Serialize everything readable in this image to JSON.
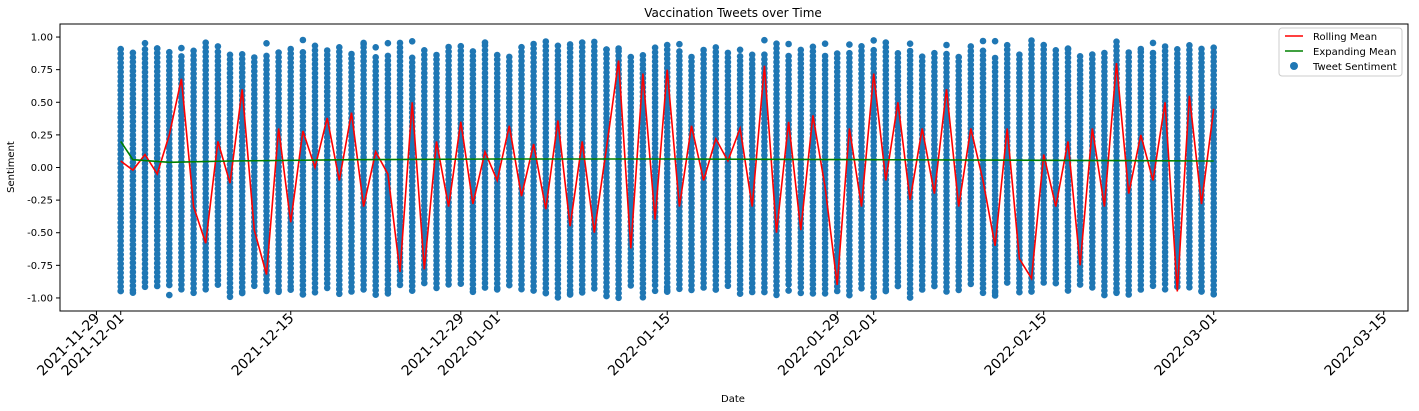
{
  "chart_data": {
    "type": "scatter",
    "title": "Vaccination Tweets over Time",
    "xlabel": "Date",
    "ylabel": "Sentiment",
    "x_range": [
      "2021-11-26",
      "2022-03-17"
    ],
    "ylim": [
      -1.1,
      1.1
    ],
    "y_ticks": [
      "1.00",
      "0.75",
      "0.50",
      "0.25",
      "0.00",
      "-0.25",
      "-0.50",
      "-0.75",
      "-1.00"
    ],
    "x_ticks": [
      "2021-11-29",
      "2021-12-01",
      "2021-12-15",
      "2021-12-29",
      "2022-01-01",
      "2022-01-15",
      "2022-01-29",
      "2022-02-01",
      "2022-02-15",
      "2022-03-01",
      "2022-03-15"
    ],
    "date_start": "2021-12-01",
    "date_end": "2022-03-01",
    "legend_position": "top-right",
    "grid": false,
    "series": [
      {
        "name": "Rolling Mean",
        "kind": "line",
        "color": "#ff0000",
        "points": [
          [
            "2021-12-01",
            0.05
          ],
          [
            "2021-12-02",
            -0.02
          ],
          [
            "2021-12-03",
            0.1
          ],
          [
            "2021-12-04",
            -0.05
          ],
          [
            "2021-12-05",
            0.25
          ],
          [
            "2021-12-06",
            0.68
          ],
          [
            "2021-12-07",
            -0.3
          ],
          [
            "2021-12-08",
            -0.58
          ],
          [
            "2021-12-09",
            0.2
          ],
          [
            "2021-12-10",
            -0.12
          ],
          [
            "2021-12-11",
            0.6
          ],
          [
            "2021-12-12",
            -0.48
          ],
          [
            "2021-12-13",
            -0.82
          ],
          [
            "2021-12-14",
            0.3
          ],
          [
            "2021-12-15",
            -0.42
          ],
          [
            "2021-12-16",
            0.28
          ],
          [
            "2021-12-17",
            0.0
          ],
          [
            "2021-12-18",
            0.38
          ],
          [
            "2021-12-19",
            -0.1
          ],
          [
            "2021-12-20",
            0.42
          ],
          [
            "2021-12-21",
            -0.3
          ],
          [
            "2021-12-22",
            0.12
          ],
          [
            "2021-12-23",
            -0.05
          ],
          [
            "2021-12-24",
            -0.8
          ],
          [
            "2021-12-25",
            0.5
          ],
          [
            "2021-12-26",
            -0.78
          ],
          [
            "2021-12-27",
            0.2
          ],
          [
            "2021-12-28",
            -0.3
          ],
          [
            "2021-12-29",
            0.35
          ],
          [
            "2021-12-30",
            -0.28
          ],
          [
            "2021-12-31",
            0.12
          ],
          [
            "2022-01-01",
            -0.1
          ],
          [
            "2022-01-02",
            0.32
          ],
          [
            "2022-01-03",
            -0.22
          ],
          [
            "2022-01-04",
            0.18
          ],
          [
            "2022-01-05",
            -0.32
          ],
          [
            "2022-01-06",
            0.36
          ],
          [
            "2022-01-07",
            -0.45
          ],
          [
            "2022-01-08",
            0.2
          ],
          [
            "2022-01-09",
            -0.5
          ],
          [
            "2022-01-10",
            0.15
          ],
          [
            "2022-01-11",
            0.82
          ],
          [
            "2022-01-12",
            -0.62
          ],
          [
            "2022-01-13",
            0.72
          ],
          [
            "2022-01-14",
            -0.4
          ],
          [
            "2022-01-15",
            0.75
          ],
          [
            "2022-01-16",
            -0.3
          ],
          [
            "2022-01-17",
            0.32
          ],
          [
            "2022-01-18",
            -0.1
          ],
          [
            "2022-01-19",
            0.22
          ],
          [
            "2022-01-20",
            0.05
          ],
          [
            "2022-01-21",
            0.3
          ],
          [
            "2022-01-22",
            -0.3
          ],
          [
            "2022-01-23",
            0.78
          ],
          [
            "2022-01-24",
            -0.5
          ],
          [
            "2022-01-25",
            0.35
          ],
          [
            "2022-01-26",
            -0.48
          ],
          [
            "2022-01-27",
            0.4
          ],
          [
            "2022-01-28",
            -0.15
          ],
          [
            "2022-01-29",
            -0.9
          ],
          [
            "2022-01-30",
            0.3
          ],
          [
            "2022-01-31",
            -0.3
          ],
          [
            "2022-02-01",
            0.72
          ],
          [
            "2022-02-02",
            -0.1
          ],
          [
            "2022-02-03",
            0.5
          ],
          [
            "2022-02-04",
            -0.25
          ],
          [
            "2022-02-05",
            0.3
          ],
          [
            "2022-02-06",
            -0.2
          ],
          [
            "2022-02-07",
            0.6
          ],
          [
            "2022-02-08",
            -0.3
          ],
          [
            "2022-02-09",
            0.3
          ],
          [
            "2022-02-10",
            -0.1
          ],
          [
            "2022-02-11",
            -0.6
          ],
          [
            "2022-02-12",
            0.3
          ],
          [
            "2022-02-13",
            -0.7
          ],
          [
            "2022-02-14",
            -0.85
          ],
          [
            "2022-02-15",
            0.1
          ],
          [
            "2022-02-16",
            -0.3
          ],
          [
            "2022-02-17",
            0.2
          ],
          [
            "2022-02-18",
            -0.75
          ],
          [
            "2022-02-19",
            0.3
          ],
          [
            "2022-02-20",
            -0.3
          ],
          [
            "2022-02-21",
            0.8
          ],
          [
            "2022-02-22",
            -0.2
          ],
          [
            "2022-02-23",
            0.25
          ],
          [
            "2022-02-24",
            -0.1
          ],
          [
            "2022-02-25",
            0.5
          ],
          [
            "2022-02-26",
            -0.95
          ],
          [
            "2022-02-27",
            0.55
          ],
          [
            "2022-02-28",
            -0.28
          ],
          [
            "2022-03-01",
            0.45
          ]
        ]
      },
      {
        "name": "Expanding Mean",
        "kind": "line",
        "color": "#008000",
        "points": [
          [
            "2021-12-01",
            0.2
          ],
          [
            "2021-12-02",
            0.06
          ],
          [
            "2021-12-05",
            0.04
          ],
          [
            "2021-12-10",
            0.05
          ],
          [
            "2021-12-20",
            0.06
          ],
          [
            "2022-01-01",
            0.065
          ],
          [
            "2022-01-15",
            0.065
          ],
          [
            "2022-02-01",
            0.06
          ],
          [
            "2022-02-15",
            0.055
          ],
          [
            "2022-03-01",
            0.05
          ]
        ]
      },
      {
        "name": "Tweet Sentiment",
        "kind": "scatter",
        "color": "#1f77b4",
        "y_extent": [
          -1.0,
          0.98
        ],
        "note_count": "one column of points per day"
      }
    ]
  }
}
